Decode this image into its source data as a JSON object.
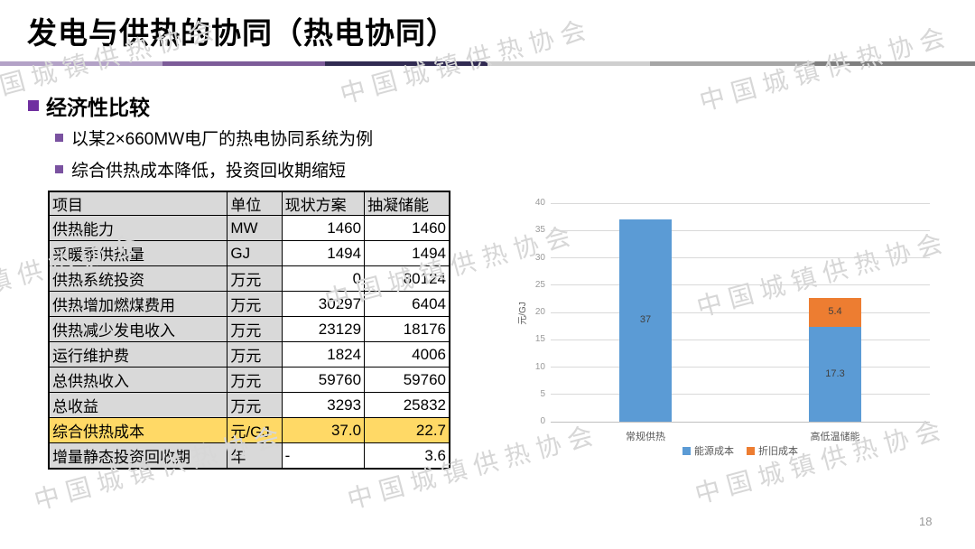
{
  "slide": {
    "title": "发电与供热的协同（热电协同）",
    "page_number": "18",
    "watermark_text": "中国城镇供热协会"
  },
  "content": {
    "heading": "经济性比较",
    "bullets": [
      "以某2×660MW电厂的热电协同系统为例",
      "综合供热成本降低，投资回收期缩短"
    ]
  },
  "table": {
    "headers": [
      "项目",
      "单位",
      "现状方案",
      "抽凝储能"
    ],
    "rows": [
      {
        "item": "供热能力",
        "unit": "MW",
        "current": "1460",
        "storage": "1460"
      },
      {
        "item": "采暖季供热量",
        "unit": "GJ",
        "current": "1494",
        "storage": "1494"
      },
      {
        "item": "供热系统投资",
        "unit": "万元",
        "current": "0",
        "storage": "80124"
      },
      {
        "item": "供热增加燃煤费用",
        "unit": "万元",
        "current": "30297",
        "storage": "6404"
      },
      {
        "item": "供热减少发电收入",
        "unit": "万元",
        "current": "23129",
        "storage": "18176"
      },
      {
        "item": "运行维护费",
        "unit": "万元",
        "current": "1824",
        "storage": "4006"
      },
      {
        "item": "总供热收入",
        "unit": "万元",
        "current": "59760",
        "storage": "59760"
      },
      {
        "item": "总收益",
        "unit": "万元",
        "current": "3293",
        "storage": "25832"
      },
      {
        "item": "综合供热成本",
        "unit": "元/GJ",
        "current": "37.0",
        "storage": "22.7"
      },
      {
        "item": "增量静态投资回收期",
        "unit": "年",
        "current": "-",
        "storage": "3.6"
      }
    ],
    "highlight_row_index": 8
  },
  "chart_data": {
    "type": "bar",
    "stacked": true,
    "categories": [
      "常规供热",
      "高低温储能"
    ],
    "series": [
      {
        "name": "能源成本",
        "color": "#5B9BD5",
        "values": [
          37,
          17.3
        ]
      },
      {
        "name": "折旧成本",
        "color": "#ED7D31",
        "values": [
          0,
          5.4
        ]
      }
    ],
    "title": "",
    "xlabel": "",
    "ylabel": "元/GJ",
    "ylim": [
      0,
      40
    ],
    "ytick_step": 5,
    "grid": true,
    "legend_position": "bottom",
    "data_labels": true
  },
  "colors": {
    "bar_blue": "#5B9BD5",
    "bar_orange": "#ED7D31",
    "highlight_yellow": "#FFD966",
    "table_gray": "#D9D9D9",
    "bullet_purple": "#7030A0",
    "divider": [
      "#B3A2C7",
      "#7D5C99",
      "#312B52",
      "#CFCFCF",
      "#A6A6A6",
      "#7F7F7F"
    ]
  }
}
